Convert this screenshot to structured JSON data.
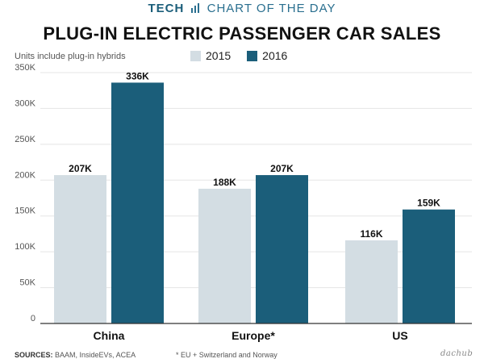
{
  "header": {
    "section": "TECH",
    "label": "CHART OF THE DAY"
  },
  "footer": {
    "sources_label": "SOURCES:",
    "sources": "BAAM, InsideEVs, ACEA",
    "note": "* EU + Switzerland and Norway",
    "logo": "dachub"
  },
  "colors": {
    "2015": "#d3dde3",
    "2016": "#1b5e7a",
    "gridline": "#e5e5e5",
    "axis": "#333333"
  },
  "chart_data": {
    "type": "bar",
    "title": "PLUG-IN ELECTRIC PASSENGER CAR SALES",
    "subtitle": "Units include plug-in hybrids",
    "categories": [
      "China",
      "Europe*",
      "US"
    ],
    "series": [
      {
        "name": "2015",
        "values": [
          207000,
          188000,
          116000
        ],
        "labels": [
          "207K",
          "188K",
          "116K"
        ]
      },
      {
        "name": "2016",
        "values": [
          336000,
          207000,
          159000
        ],
        "labels": [
          "336K",
          "207K",
          "159K"
        ]
      }
    ],
    "ylim": [
      0,
      350000
    ],
    "yticks": [
      0,
      50000,
      100000,
      150000,
      200000,
      250000,
      300000,
      350000
    ],
    "ytick_labels": [
      "0",
      "50K",
      "100K",
      "150K",
      "200K",
      "250K",
      "300K",
      "350K"
    ],
    "grid": true,
    "legend": "top"
  }
}
